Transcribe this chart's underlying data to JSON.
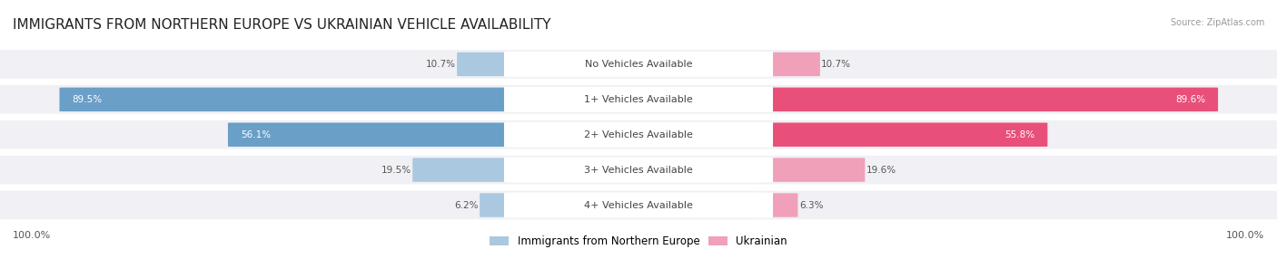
{
  "title": "IMMIGRANTS FROM NORTHERN EUROPE VS UKRAINIAN VEHICLE AVAILABILITY",
  "source": "Source: ZipAtlas.com",
  "categories": [
    "No Vehicles Available",
    "1+ Vehicles Available",
    "2+ Vehicles Available",
    "3+ Vehicles Available",
    "4+ Vehicles Available"
  ],
  "left_values": [
    10.7,
    89.5,
    56.1,
    19.5,
    6.2
  ],
  "right_values": [
    10.7,
    89.6,
    55.8,
    19.6,
    6.3
  ],
  "left_label": "Immigrants from Northern Europe",
  "right_label": "Ukrainian",
  "left_color_large": "#6a9fc8",
  "left_color_small": "#aac8e0",
  "right_color_large": "#e8507a",
  "right_color_small": "#f0a0b8",
  "row_bg_color": "#f0f0f5",
  "max_value": 100.0,
  "title_fontsize": 11,
  "cat_fontsize": 8,
  "value_fontsize": 7.5,
  "figsize": [
    14.06,
    2.86
  ],
  "dpi": 100
}
